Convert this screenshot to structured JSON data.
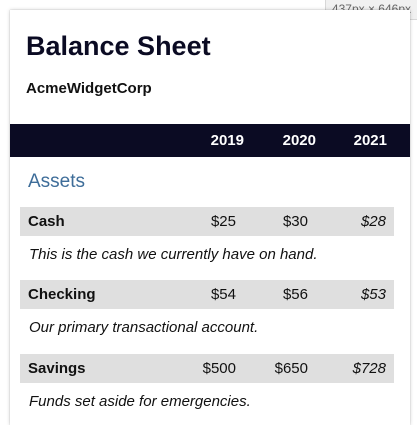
{
  "devtools": {
    "viewport_size": "437px × 646px"
  },
  "report": {
    "title": "Balance Sheet",
    "company": "AcmeWidgetCorp",
    "years": [
      "2019",
      "2020",
      "2021"
    ],
    "header_color": "#0b0b23",
    "section_title_color": "#3e6d99",
    "row_background": "#dfdfdf"
  },
  "sections": [
    {
      "title": "Assets",
      "rows": [
        {
          "label": "Cash",
          "values": [
            "$25",
            "$30",
            "$28"
          ],
          "note": "This is the cash we currently have on hand."
        },
        {
          "label": "Checking",
          "values": [
            "$54",
            "$56",
            "$53"
          ],
          "note": "Our primary transactional account."
        },
        {
          "label": "Savings",
          "values": [
            "$500",
            "$650",
            "$728"
          ],
          "note": "Funds set aside for emergencies."
        }
      ]
    }
  ]
}
